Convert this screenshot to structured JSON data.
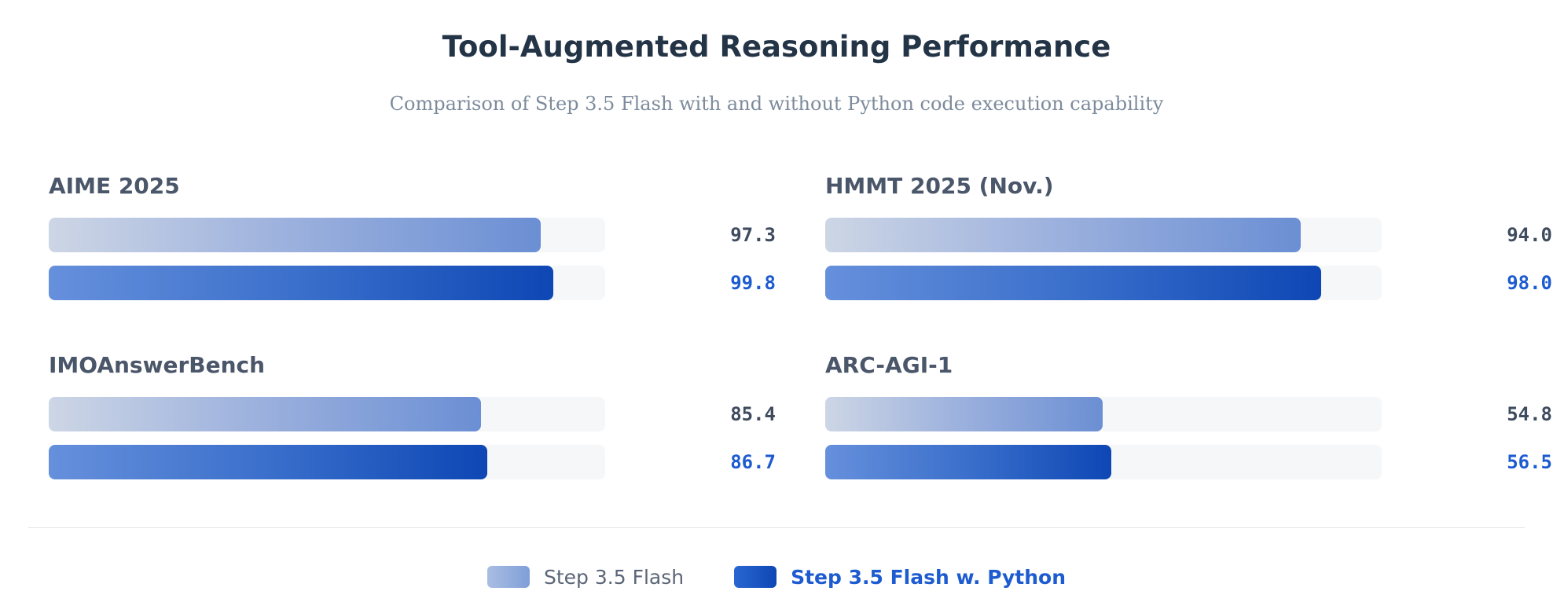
{
  "chart_data": {
    "type": "bar",
    "orientation": "horizontal",
    "title": "Tool-Augmented Reasoning Performance",
    "subtitle": "Comparison of Step 3.5 Flash with and without Python code execution capability",
    "xlim": [
      0,
      110
    ],
    "series_names": [
      "Step 3.5 Flash",
      "Step 3.5 Flash w. Python"
    ],
    "colors": {
      "base": "#8aa4dc",
      "python": "#0e47b5"
    },
    "benchmarks": [
      {
        "name": "AIME 2025",
        "base": 97.3,
        "python": 99.8,
        "base_label": "97.3",
        "python_label": "99.8"
      },
      {
        "name": "HMMT 2025 (Nov.)",
        "base": 94.0,
        "python": 98.0,
        "base_label": "94.0",
        "python_label": "98.0"
      },
      {
        "name": "IMOAnswerBench",
        "base": 85.4,
        "python": 86.7,
        "base_label": "85.4",
        "python_label": "86.7"
      },
      {
        "name": "ARC-AGI-1",
        "base": 54.8,
        "python": 56.5,
        "base_label": "54.8",
        "python_label": "56.5"
      }
    ]
  }
}
